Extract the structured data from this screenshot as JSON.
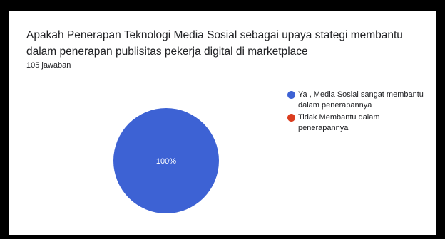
{
  "question": {
    "title": "Apakah Penerapan Teknologi Media Sosial sebagai upaya stategi membantu dalam penerapan publisitas pekerja digital di marketplace",
    "responses": "105 jawaban"
  },
  "colors": {
    "series_1": "#3d62d4",
    "series_2": "#db3d1f",
    "pie_label": "#ffffff"
  },
  "chart_data": {
    "type": "pie",
    "title": "",
    "legend_position": "right",
    "series": [
      {
        "name": "Ya , Media Sosial sangat membantu dalam penerapannya",
        "value": 100,
        "label": "100%",
        "color": "#3d62d4"
      },
      {
        "name": "Tidak Membantu dalam penerapannya",
        "value": 0,
        "label": "",
        "color": "#db3d1f"
      }
    ]
  }
}
